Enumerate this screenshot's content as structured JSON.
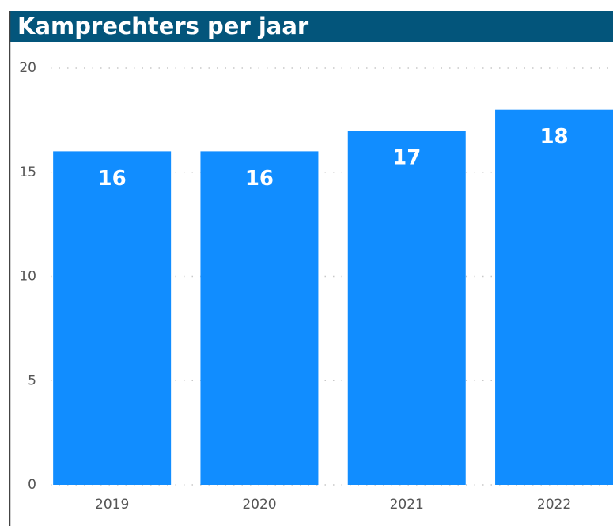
{
  "chart_data": {
    "type": "bar",
    "title": "Kamprechters per jaar",
    "categories": [
      "2019",
      "2020",
      "2021",
      "2022"
    ],
    "values": [
      16,
      16,
      17,
      18
    ],
    "color": "#118dff",
    "ylim": [
      0,
      20
    ],
    "yticks": [
      0,
      5,
      10,
      15,
      20
    ],
    "grid": true
  }
}
